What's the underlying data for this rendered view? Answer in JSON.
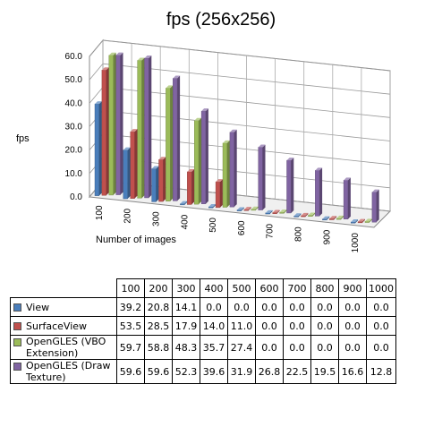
{
  "chart_data": {
    "type": "bar",
    "title": "fps (256x256)",
    "ylabel": "fps",
    "xlabel": "Number of images",
    "ylim": [
      0,
      60
    ],
    "yticks": [
      "0.0",
      "10.0",
      "20.0",
      "30.0",
      "40.0",
      "50.0",
      "60.0"
    ],
    "categories": [
      "100",
      "200",
      "300",
      "400",
      "500",
      "600",
      "700",
      "800",
      "900",
      "1000"
    ],
    "series": [
      {
        "name": "View",
        "color": "#4a7ebb",
        "values": [
          39.2,
          20.8,
          14.1,
          0.0,
          0.0,
          0.0,
          0.0,
          0.0,
          0.0,
          0.0
        ],
        "labels": [
          "39.2",
          "20.8",
          "14.1",
          "0.0",
          "0.0",
          "0.0",
          "0.0",
          "0.0",
          "0.0",
          "0.0"
        ]
      },
      {
        "name": "SurfaceView",
        "color": "#c0504d",
        "values": [
          53.5,
          28.5,
          17.9,
          14.0,
          11.0,
          0.0,
          0.0,
          0.0,
          0.0,
          0.0
        ],
        "labels": [
          "53.5",
          "28.5",
          "17.9",
          "14.0",
          "11.0",
          "0.0",
          "0.0",
          "0.0",
          "0.0",
          "0.0"
        ]
      },
      {
        "name": "OpenGLES (VBO Extension)",
        "color": "#9bbb59",
        "values": [
          59.7,
          58.8,
          48.3,
          35.7,
          27.4,
          0.0,
          0.0,
          0.0,
          0.0,
          0.0
        ],
        "labels": [
          "59.7",
          "58.8",
          "48.3",
          "35.7",
          "27.4",
          "0.0",
          "0.0",
          "0.0",
          "0.0",
          "0.0"
        ]
      },
      {
        "name": "OpenGLES (Draw Texture)",
        "color": "#8064a2",
        "values": [
          59.6,
          59.6,
          52.3,
          39.6,
          31.9,
          26.8,
          22.5,
          19.5,
          16.6,
          12.8
        ],
        "labels": [
          "59.6",
          "59.6",
          "52.3",
          "39.6",
          "31.9",
          "26.8",
          "22.5",
          "19.5",
          "16.6",
          "12.8"
        ]
      }
    ],
    "table_series_labels": [
      [
        "View"
      ],
      [
        "SurfaceView"
      ],
      [
        "OpenGLES (VBO",
        "Extension)"
      ],
      [
        "OpenGLES (Draw",
        "Texture)"
      ]
    ],
    "grid": true
  }
}
